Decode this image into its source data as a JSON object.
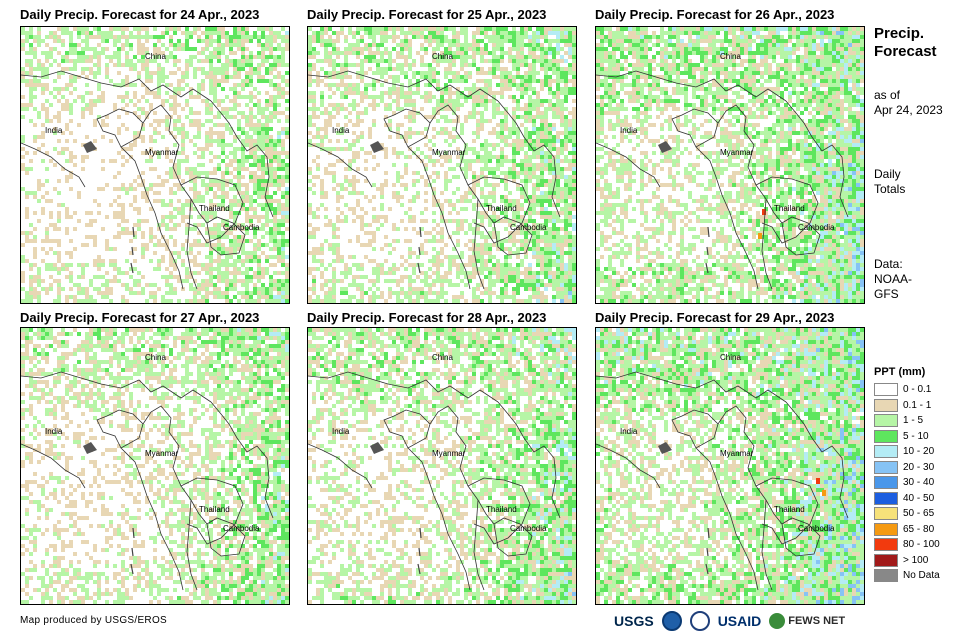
{
  "panels": [
    {
      "title": "Daily Precip. Forecast for 24 Apr., 2023"
    },
    {
      "title": "Daily Precip. Forecast for 25 Apr., 2023"
    },
    {
      "title": "Daily Precip. Forecast for 26 Apr., 2023"
    },
    {
      "title": "Daily Precip. Forecast for 27 Apr., 2023"
    },
    {
      "title": "Daily Precip. Forecast for 28 Apr., 2023"
    },
    {
      "title": "Daily Precip. Forecast for 29 Apr., 2023"
    }
  ],
  "map_labels": {
    "china": "China",
    "india": "India",
    "myanmar": "Myanmar",
    "thailand": "Thailand",
    "cambodia": "Cambodia"
  },
  "sidebar": {
    "title_line1": "Precip.",
    "title_line2": "Forecast",
    "as_of_line1": "as of",
    "as_of_line2": "Apr 24, 2023",
    "totals_line1": "Daily",
    "totals_line2": "Totals",
    "data_line1": "Data:",
    "data_line2": "NOAA-",
    "data_line3": "GFS"
  },
  "legend": {
    "title": "PPT (mm)",
    "items": [
      {
        "label": "0 - 0.1",
        "color": "#ffffff"
      },
      {
        "label": "0.1 - 1",
        "color": "#e8d7b4"
      },
      {
        "label": "1 - 5",
        "color": "#b6f5a6"
      },
      {
        "label": "5 - 10",
        "color": "#5ee65e"
      },
      {
        "label": "10 - 20",
        "color": "#b4ecf5"
      },
      {
        "label": "20 - 30",
        "color": "#86c3f5"
      },
      {
        "label": "30 - 40",
        "color": "#4a97ea"
      },
      {
        "label": "40 - 50",
        "color": "#1c5ee0"
      },
      {
        "label": "50 - 65",
        "color": "#f7e27a"
      },
      {
        "label": "65 - 80",
        "color": "#f59a12"
      },
      {
        "label": "80 - 100",
        "color": "#f23a0e"
      },
      {
        "label": "> 100",
        "color": "#a11a1a"
      },
      {
        "label": "No Data",
        "color": "#888888"
      }
    ]
  },
  "footer": {
    "credit": "Map produced by USGS/EROS"
  },
  "logos": {
    "usgs": "USGS",
    "usaid": "USAID",
    "fews": "FEWS NET"
  }
}
